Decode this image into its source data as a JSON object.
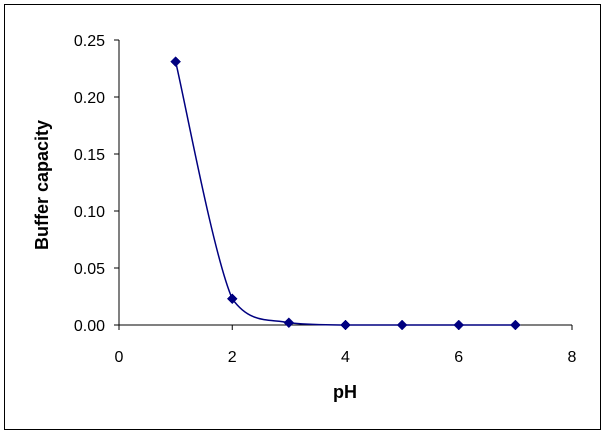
{
  "chart_data": {
    "type": "scatter",
    "title": "",
    "xlabel": "pH",
    "ylabel": "Buffer capacity",
    "xlim": [
      0,
      8
    ],
    "ylim": [
      0,
      0.25
    ],
    "x_ticks": [
      "0",
      "2",
      "4",
      "6",
      "8"
    ],
    "y_ticks": [
      "0.00",
      "0.05",
      "0.10",
      "0.15",
      "0.20",
      "0.25"
    ],
    "grid": false,
    "legend": "none",
    "line_style": "smoothed",
    "marker": "diamond",
    "series": [
      {
        "x": [
          1,
          2,
          3,
          4,
          5,
          6,
          7
        ],
        "y": [
          0.231,
          0.023,
          0.002,
          0.0,
          0.0,
          0.0,
          0.0
        ]
      }
    ]
  },
  "colors": {
    "series": "#000080",
    "axis": "#000000",
    "frame": "#000000",
    "background": "#ffffff"
  }
}
